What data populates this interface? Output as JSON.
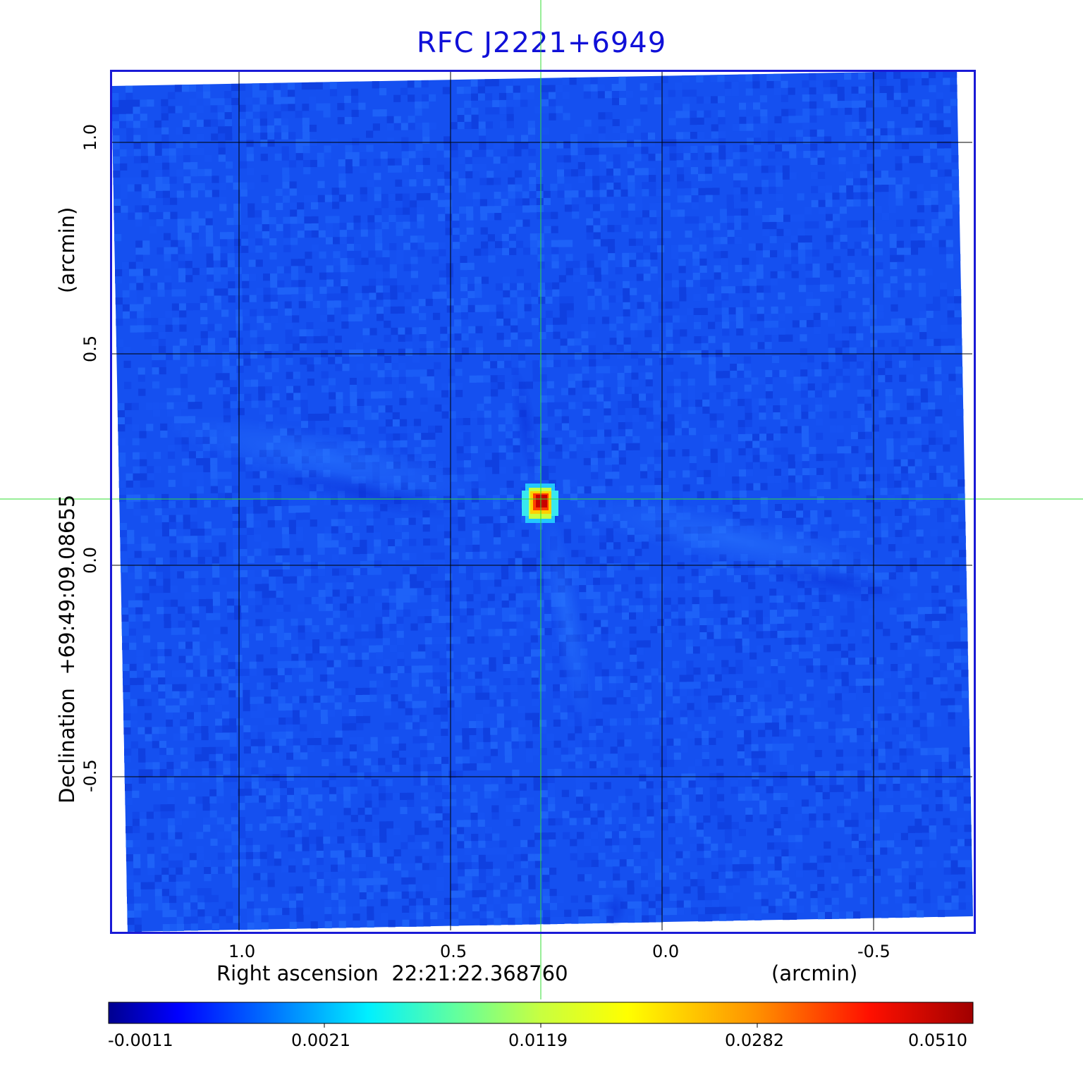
{
  "title": "RFC J2221+6949",
  "x_axis": {
    "label": "Right ascension  22:21:22.368760",
    "unit": "(arcmin)",
    "ticks": [
      "1.0",
      "0.5",
      "0.0",
      "-0.5"
    ]
  },
  "y_axis": {
    "label": "Declination  +69:49:09.08655",
    "unit": "(arcmin)",
    "ticks": [
      "1.0",
      "0.5",
      "0.0",
      "-0.5"
    ]
  },
  "colorbar": {
    "ticks": [
      "-0.0011",
      "0.0021",
      "0.0119",
      "0.0282",
      "0.0510"
    ],
    "colors": [
      "#00008f",
      "#0000ff",
      "#0080ff",
      "#00ffff",
      "#80ff80",
      "#ffff00",
      "#ff8000",
      "#ff0000",
      "#800000"
    ]
  },
  "colors": {
    "background_map": "#1550f0",
    "frame": "#1a1ad6",
    "crosshair": "#33dd33",
    "grid": "#000000",
    "peak": "#d40000"
  }
}
